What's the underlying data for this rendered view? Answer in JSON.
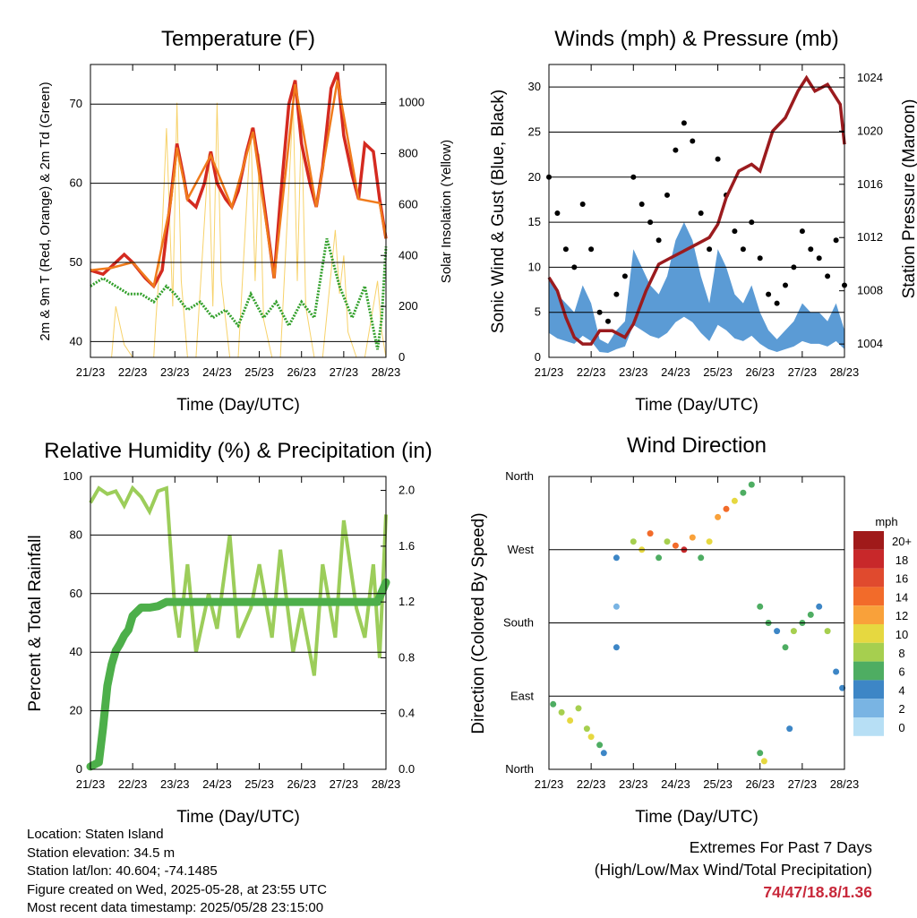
{
  "chart_data": [
    {
      "type": "line",
      "title": "Temperature (F)",
      "xlabel": "Time (Day/UTC)",
      "ylabel": "2m & 9m T (Red, Orange) & 2m Td (Green)",
      "y2label": "Solar Insolation (Yellow)",
      "x_ticks": [
        "21/23",
        "22/23",
        "23/23",
        "24/23",
        "25/23",
        "26/23",
        "27/23",
        "28/23"
      ],
      "ylim": [
        38,
        75
      ],
      "y_ticks": [
        40,
        50,
        60,
        70
      ],
      "y2lim": [
        0,
        1150
      ],
      "y2_ticks": [
        0,
        200,
        400,
        600,
        800,
        1000
      ],
      "grid": true,
      "series": [
        {
          "color": "#d42a20",
          "x": [
            0,
            0.3,
            0.5,
            0.8,
            1.0,
            1.3,
            1.5,
            1.7,
            1.9,
            2.05,
            2.2,
            2.3,
            2.5,
            2.7,
            2.85,
            3.0,
            3.2,
            3.35,
            3.5,
            3.7,
            3.85,
            4.0,
            4.2,
            4.35,
            4.5,
            4.7,
            4.85,
            5.0,
            5.2,
            5.35,
            5.5,
            5.7,
            5.85,
            6.0,
            6.2,
            6.35,
            6.5,
            6.7,
            6.85,
            7.0
          ],
          "y": [
            49,
            48.5,
            49.5,
            51,
            50,
            48,
            47,
            49,
            58,
            65,
            61,
            58,
            57,
            60,
            64,
            60,
            58,
            57,
            59,
            64,
            67,
            62,
            54,
            48,
            58,
            70,
            73,
            65,
            60,
            57,
            62,
            72,
            74,
            66,
            61,
            58,
            65,
            64,
            58,
            53
          ]
        },
        {
          "color": "#f07b1c",
          "x": [
            0,
            0.5,
            1.0,
            1.5,
            1.9,
            2.05,
            2.3,
            2.85,
            3.35,
            3.85,
            4.35,
            4.85,
            5.35,
            5.85,
            6.35,
            6.85,
            7.0
          ],
          "y": [
            49,
            49.3,
            50,
            47,
            57.5,
            64.5,
            58,
            63.5,
            57,
            66.5,
            48,
            72.5,
            57,
            73,
            58,
            57.5,
            53
          ]
        },
        {
          "color": "#33a02c",
          "x": [
            0,
            0.3,
            0.6,
            0.9,
            1.2,
            1.5,
            1.8,
            2.0,
            2.3,
            2.6,
            2.9,
            3.2,
            3.5,
            3.8,
            4.1,
            4.4,
            4.7,
            5.0,
            5.3,
            5.6,
            5.9,
            6.2,
            6.5,
            6.8,
            6.9,
            7.0
          ],
          "y": [
            47,
            48,
            47,
            46,
            46,
            45,
            47,
            46,
            44,
            45,
            43,
            44,
            42,
            46,
            43,
            45,
            42,
            45,
            43,
            53,
            47,
            43,
            47,
            39,
            43,
            52
          ]
        },
        {
          "color": "#f7d26a",
          "x": [
            0,
            0.5,
            0.6,
            0.8,
            1.0,
            1.5,
            1.55,
            1.7,
            1.8,
            1.95,
            2.05,
            2.15,
            2.3,
            2.5,
            2.8,
            2.9,
            3.0,
            3.1,
            3.3,
            3.5,
            3.8,
            3.9,
            4.0,
            4.1,
            4.3,
            4.5,
            4.8,
            4.9,
            5.0,
            5.1,
            5.3,
            5.5,
            5.8,
            5.9,
            6.0,
            6.1,
            6.3,
            6.5,
            6.8,
            6.9,
            7.0
          ],
          "y": [
            0,
            0,
            200,
            50,
            0,
            0,
            150,
            500,
            900,
            200,
            1000,
            300,
            0,
            0,
            800,
            200,
            1000,
            300,
            0,
            0,
            900,
            300,
            800,
            150,
            0,
            0,
            1000,
            300,
            950,
            200,
            0,
            0,
            500,
            250,
            400,
            100,
            0,
            0,
            300,
            100,
            0
          ]
        }
      ]
    },
    {
      "type": "scatter",
      "title": "Winds (mph) & Pressure (mb)",
      "xlabel": "Time (Day/UTC)",
      "ylabel": "Sonic Wind & Gust (Blue, Black)",
      "y2label": "Station Pressure (Maroon)",
      "x_ticks": [
        "21/23",
        "22/23",
        "23/23",
        "24/23",
        "25/23",
        "26/23",
        "27/23",
        "28/23"
      ],
      "ylim": [
        0,
        32.5
      ],
      "y_ticks": [
        0,
        5,
        10,
        15,
        20,
        25,
        30
      ],
      "y2lim": [
        1003,
        1025
      ],
      "y2_ticks": [
        1004,
        1008,
        1012,
        1016,
        1020,
        1024
      ],
      "grid": true,
      "series": [
        {
          "color": "#000000",
          "kind": "points",
          "x": [
            0,
            0.2,
            0.4,
            0.6,
            0.8,
            1.0,
            1.2,
            1.4,
            1.6,
            1.8,
            2.0,
            2.2,
            2.4,
            2.6,
            2.8,
            3.0,
            3.2,
            3.4,
            3.6,
            3.8,
            4.0,
            4.2,
            4.4,
            4.6,
            4.8,
            5.0,
            5.2,
            5.4,
            5.6,
            5.8,
            6.0,
            6.2,
            6.4,
            6.6,
            6.8,
            7.0
          ],
          "y": [
            20,
            16,
            12,
            10,
            17,
            12,
            5,
            4,
            7,
            9,
            20,
            17,
            15,
            13,
            18,
            23,
            26,
            24,
            16,
            12,
            22,
            18,
            14,
            12,
            15,
            11,
            7,
            6,
            8,
            10,
            14,
            12,
            11,
            9,
            13,
            8
          ]
        },
        {
          "color": "#5b9bd5",
          "kind": "band",
          "x": [
            0,
            0.2,
            0.4,
            0.6,
            0.8,
            1.0,
            1.2,
            1.4,
            1.6,
            1.8,
            2.0,
            2.2,
            2.4,
            2.6,
            2.8,
            3.0,
            3.2,
            3.4,
            3.6,
            3.8,
            4.0,
            4.2,
            4.4,
            4.6,
            4.8,
            5.0,
            5.2,
            5.4,
            5.6,
            5.8,
            6.0,
            6.2,
            6.4,
            6.6,
            6.8,
            7.0
          ],
          "y": [
            9,
            7,
            6,
            5,
            8,
            6,
            2,
            1.5,
            3,
            4,
            12,
            10,
            8,
            7,
            9,
            13,
            15,
            13,
            9,
            6,
            12,
            10,
            7,
            6,
            8,
            5,
            3,
            2,
            3,
            4,
            6,
            5,
            5,
            4,
            6,
            3
          ]
        },
        {
          "color": "#9b1b1e",
          "kind": "line",
          "axis": "y2",
          "x": [
            0,
            0.2,
            0.4,
            0.6,
            0.8,
            1.0,
            1.2,
            1.5,
            1.8,
            2.0,
            2.3,
            2.6,
            2.9,
            3.2,
            3.5,
            3.8,
            4.0,
            4.2,
            4.5,
            4.8,
            5.0,
            5.3,
            5.6,
            5.9,
            6.1,
            6.3,
            6.6,
            6.9,
            7.0
          ],
          "y": [
            1009,
            1008,
            1006,
            1004.5,
            1004,
            1004,
            1005,
            1005,
            1004.5,
            1005.5,
            1008,
            1010,
            1010.5,
            1011,
            1011.5,
            1012,
            1013,
            1015,
            1017,
            1017.5,
            1017,
            1020,
            1021,
            1023,
            1024,
            1023,
            1023.5,
            1022,
            1019
          ]
        }
      ]
    },
    {
      "type": "line",
      "title": "Relative Humidity (%) & Precipitation (in)",
      "xlabel": "Time (Day/UTC)",
      "ylabel": "Percent & Total Rainfall",
      "x_ticks": [
        "21/23",
        "22/23",
        "23/23",
        "24/23",
        "25/23",
        "26/23",
        "27/23",
        "28/23"
      ],
      "ylim": [
        0,
        100
      ],
      "y_ticks": [
        0,
        20,
        40,
        60,
        80,
        100
      ],
      "y2lim": [
        0,
        2.1
      ],
      "y2_ticks": [
        "0.0",
        "0.4",
        "0.8",
        "1.2",
        "1.6",
        "2.0"
      ],
      "grid": true,
      "series": [
        {
          "color": "#9ccd5a",
          "x": [
            0,
            0.2,
            0.4,
            0.6,
            0.8,
            1.0,
            1.2,
            1.4,
            1.6,
            1.8,
            1.9,
            2.0,
            2.1,
            2.3,
            2.5,
            2.8,
            3.0,
            3.3,
            3.5,
            3.8,
            4.0,
            4.3,
            4.5,
            4.8,
            5.0,
            5.3,
            5.5,
            5.8,
            6.0,
            6.3,
            6.5,
            6.7,
            6.85,
            7.0
          ],
          "y": [
            91,
            96,
            94,
            95,
            90,
            96,
            93,
            88,
            95,
            96,
            75,
            55,
            45,
            70,
            40,
            60,
            48,
            80,
            45,
            55,
            70,
            45,
            75,
            40,
            55,
            32,
            70,
            45,
            85,
            55,
            45,
            70,
            38,
            87
          ]
        },
        {
          "color": "#4daf4a",
          "x": [
            0,
            0.2,
            0.3,
            0.4,
            0.5,
            0.6,
            0.7,
            0.8,
            0.9,
            1.0,
            1.2,
            1.4,
            1.6,
            1.8,
            2.0,
            3.0,
            4.0,
            5.0,
            6.0,
            6.8,
            7.0
          ],
          "y": [
            0.02,
            0.05,
            0.3,
            0.6,
            0.75,
            0.85,
            0.9,
            0.96,
            1.0,
            1.1,
            1.16,
            1.16,
            1.17,
            1.2,
            1.2,
            1.2,
            1.2,
            1.2,
            1.2,
            1.2,
            1.34
          ]
        }
      ]
    },
    {
      "type": "scatter",
      "title": "Wind Direction",
      "xlabel": "Time (Day/UTC)",
      "ylabel": "Direction (Colored By Speed)",
      "x_ticks": [
        "21/23",
        "22/23",
        "23/23",
        "24/23",
        "25/23",
        "26/23",
        "27/23",
        "28/23"
      ],
      "y_ticks": [
        "North",
        "East",
        "South",
        "West",
        "North"
      ],
      "ylim": [
        0,
        360
      ],
      "grid": true,
      "legend": {
        "title": "mph",
        "labels": [
          "20+",
          "18",
          "16",
          "14",
          "12",
          "10",
          "8",
          "6",
          "4",
          "2",
          "0"
        ],
        "colors": [
          "#a01a1a",
          "#c8282a",
          "#e04a2e",
          "#f26b2a",
          "#f9a13a",
          "#e6d840",
          "#a6cf4f",
          "#4ead62",
          "#3d86c6",
          "#79b4e3",
          "#b7dff5"
        ]
      },
      "points": [
        {
          "x": 0.1,
          "y": 80,
          "s": 6
        },
        {
          "x": 0.3,
          "y": 70,
          "s": 8
        },
        {
          "x": 0.5,
          "y": 60,
          "s": 9
        },
        {
          "x": 0.7,
          "y": 75,
          "s": 7
        },
        {
          "x": 0.9,
          "y": 50,
          "s": 8
        },
        {
          "x": 1.0,
          "y": 40,
          "s": 10
        },
        {
          "x": 1.2,
          "y": 30,
          "s": 6
        },
        {
          "x": 1.3,
          "y": 20,
          "s": 3
        },
        {
          "x": 1.6,
          "y": 150,
          "s": 3
        },
        {
          "x": 1.6,
          "y": 200,
          "s": 2
        },
        {
          "x": 1.6,
          "y": 260,
          "s": 4
        },
        {
          "x": 2.0,
          "y": 280,
          "s": 8
        },
        {
          "x": 2.2,
          "y": 270,
          "s": 10
        },
        {
          "x": 2.4,
          "y": 290,
          "s": 14
        },
        {
          "x": 2.6,
          "y": 260,
          "s": 6
        },
        {
          "x": 2.8,
          "y": 280,
          "s": 8
        },
        {
          "x": 3.0,
          "y": 275,
          "s": 14
        },
        {
          "x": 3.2,
          "y": 270,
          "s": 18
        },
        {
          "x": 3.4,
          "y": 285,
          "s": 12
        },
        {
          "x": 3.6,
          "y": 260,
          "s": 6
        },
        {
          "x": 3.8,
          "y": 280,
          "s": 10
        },
        {
          "x": 4.0,
          "y": 310,
          "s": 12
        },
        {
          "x": 4.2,
          "y": 320,
          "s": 14
        },
        {
          "x": 4.4,
          "y": 330,
          "s": 10
        },
        {
          "x": 4.6,
          "y": 340,
          "s": 6
        },
        {
          "x": 4.8,
          "y": 350,
          "s": 5
        },
        {
          "x": 5.0,
          "y": 200,
          "s": 6
        },
        {
          "x": 5.2,
          "y": 180,
          "s": 5
        },
        {
          "x": 5.4,
          "y": 170,
          "s": 4
        },
        {
          "x": 5.6,
          "y": 150,
          "s": 6
        },
        {
          "x": 5.8,
          "y": 170,
          "s": 7
        },
        {
          "x": 6.0,
          "y": 180,
          "s": 6
        },
        {
          "x": 6.2,
          "y": 190,
          "s": 5
        },
        {
          "x": 6.4,
          "y": 200,
          "s": 4
        },
        {
          "x": 6.6,
          "y": 170,
          "s": 8
        },
        {
          "x": 6.8,
          "y": 120,
          "s": 3
        },
        {
          "x": 6.95,
          "y": 100,
          "s": 4
        },
        {
          "x": 5.0,
          "y": 20,
          "s": 5
        },
        {
          "x": 5.1,
          "y": 10,
          "s": 9
        },
        {
          "x": 5.7,
          "y": 50,
          "s": 4
        }
      ]
    }
  ],
  "info": {
    "location": "Location: Staten Island",
    "elevation": "Station elevation: 34.5 m",
    "latlon": "Station lat/lon: 40.604; -74.1485",
    "created": "Figure created on Wed, 2025-05-28, at 23:55 UTC",
    "recent": "Most recent data timestamp: 2025/05/28 23:15:00"
  },
  "extremes": {
    "heading": "Extremes For Past 7 Days",
    "sub": "(High/Low/Max Wind/Total Precipitation)",
    "values": "74/47/18.8/1.36"
  }
}
